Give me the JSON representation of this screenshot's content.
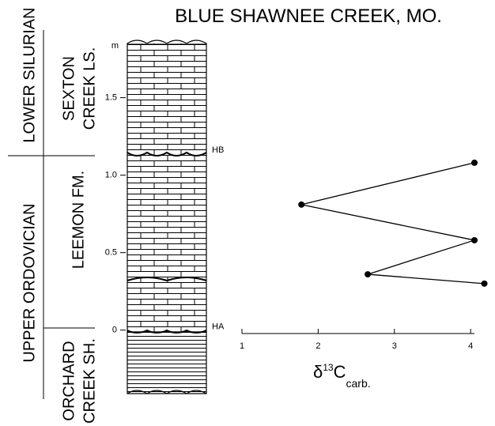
{
  "chart_data": {
    "type": "line",
    "title": "BLUE SHAWNEE CREEK, MO.",
    "y_unit": "m",
    "x": [
      4.05,
      1.78,
      4.05,
      2.65,
      4.18
    ],
    "y": [
      1.08,
      0.81,
      0.58,
      0.36,
      0.3
    ],
    "xlim": [
      1,
      4.05
    ],
    "xticks": [
      1,
      2,
      3,
      4
    ],
    "ylim": [
      -0.42,
      1.86
    ],
    "yticks": [
      0,
      0.5,
      {
        "value": 1,
        "label": "1.0"
      },
      1.5
    ],
    "x_label": {
      "symbol": "δ",
      "superscript": "13",
      "base": "C",
      "subscript": "carb."
    },
    "markers": [
      {
        "label": "HB",
        "height": 1.16
      },
      {
        "label": "HA",
        "height": 0.02
      }
    ],
    "color": "#000000"
  },
  "strat_labels": {
    "systems": [
      "LOWER SILURIAN",
      "UPPER ORDOVICIAN"
    ],
    "formations": [
      [
        "SEXTON",
        "CREEK LS."
      ],
      [
        "LEEMON FM."
      ],
      [
        "ORCHARD",
        "CREEK SH."
      ]
    ]
  }
}
